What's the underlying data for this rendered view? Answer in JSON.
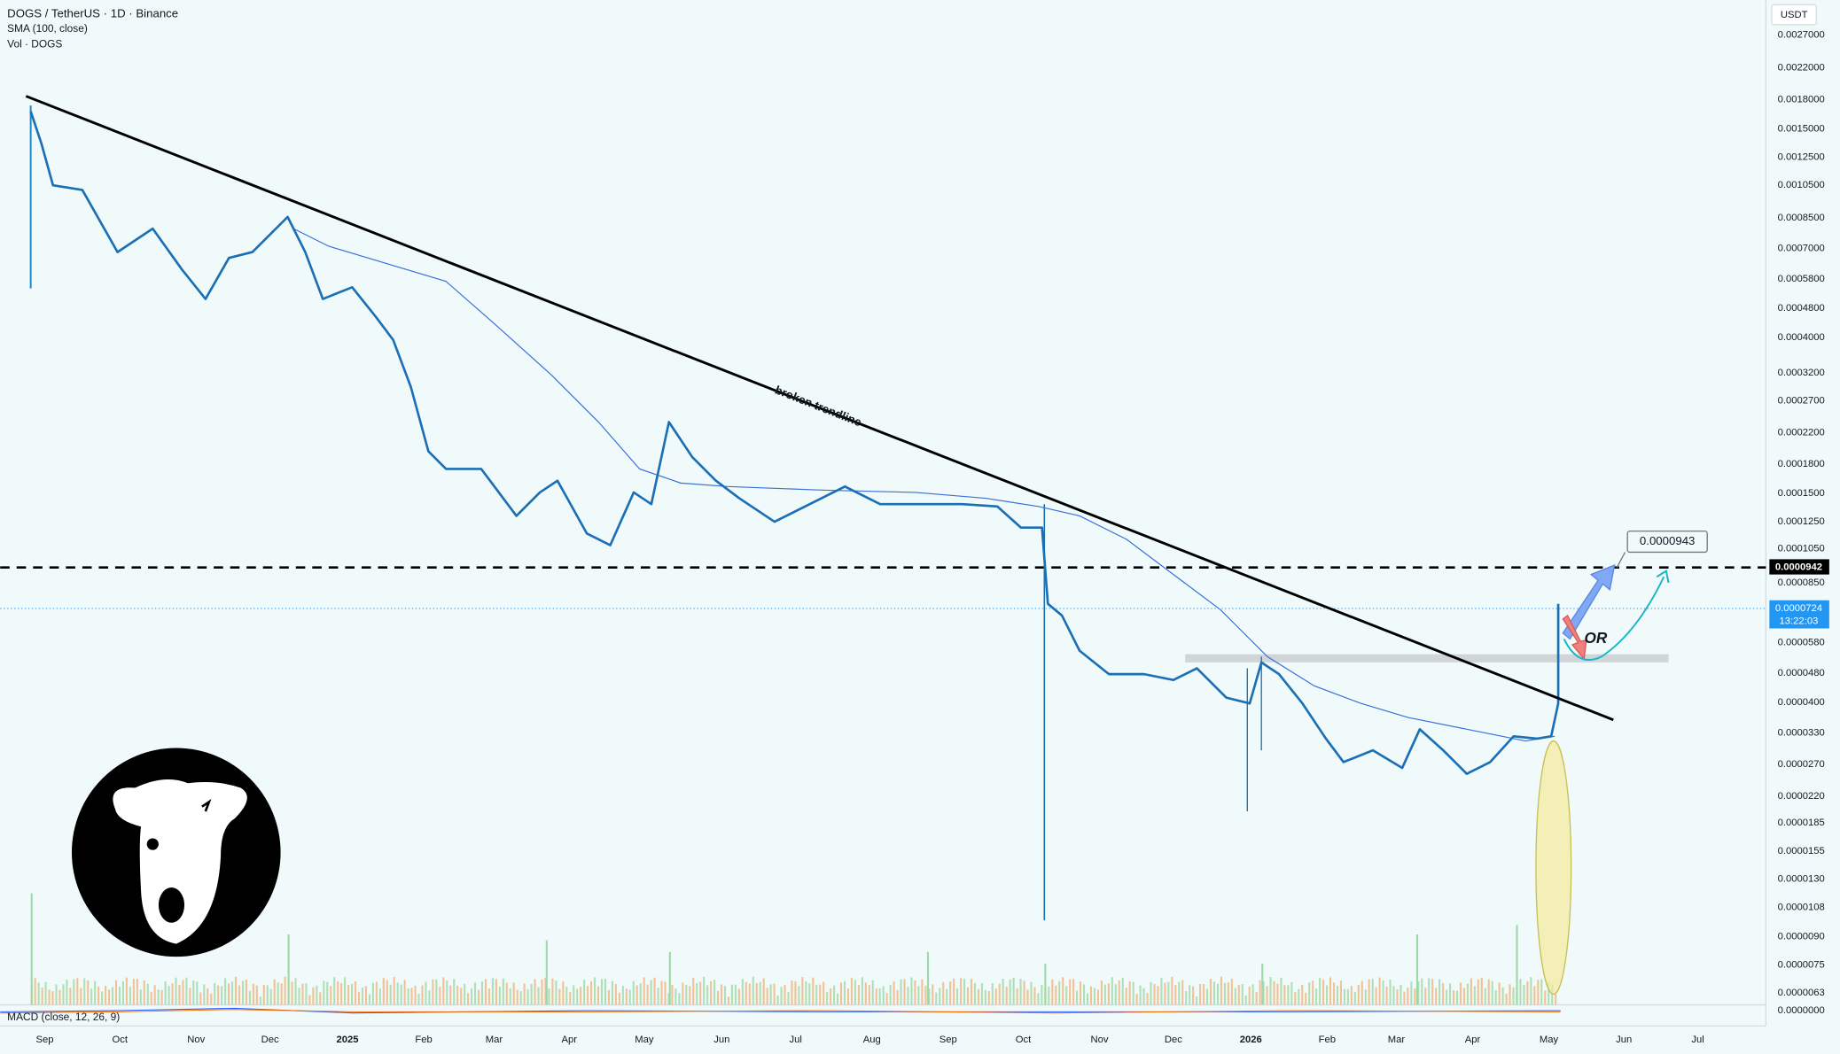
{
  "header": {
    "symbol": "DOGS / TetherUS · 1D · Binance",
    "indicator": "SMA (100, close)",
    "volume": "Vol · DOGS"
  },
  "currency": "USDT",
  "price_axis": [
    "0.0027000",
    "0.0022000",
    "0.0018000",
    "0.0015000",
    "0.0012500",
    "0.0010500",
    "0.0008500",
    "0.0007000",
    "0.0005800",
    "0.0004800",
    "0.0004000",
    "0.0003200",
    "0.0002700",
    "0.0002200",
    "0.0001800",
    "0.0001500",
    "0.0001250",
    "0.0001050",
    "0.0000850",
    "0.0000580",
    "0.0000480",
    "0.0000400",
    "0.0000330",
    "0.0000270",
    "0.0000220",
    "0.0000185",
    "0.0000155",
    "0.0000130",
    "0.0000108",
    "0.0000090",
    "0.0000075",
    "0.0000063",
    "0.0000000"
  ],
  "time_axis": [
    "Sep",
    "Oct",
    "Nov",
    "Dec",
    "2025",
    "Feb",
    "Mar",
    "Apr",
    "May",
    "Jun",
    "Jul",
    "Aug",
    "Sep",
    "Oct",
    "Nov",
    "Dec",
    "2026",
    "Feb",
    "Mar",
    "Apr",
    "May",
    "Jun",
    "Jul"
  ],
  "annotations": {
    "trendline": "broken trendline",
    "or": "OR",
    "target": "0.0000943"
  },
  "price_tags": {
    "level": "0.0000942",
    "last": "0.0000724",
    "countdown": "13:22:03"
  },
  "macd": "MACD (close, 12, 26, 9)"
}
